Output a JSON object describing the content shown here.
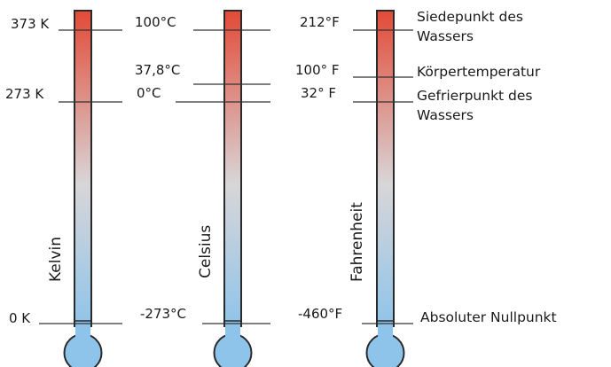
{
  "colors": {
    "hot": "#e34a37",
    "mid": "#d8d6d8",
    "cold": "#8fc4ea"
  },
  "scales": [
    {
      "name": "Kelvin",
      "labels": [
        "373 K",
        "273 K",
        "0 K"
      ]
    },
    {
      "name": "Celsius",
      "labels": [
        "100°C",
        "37,8°C",
        "0°C",
        "-273°C"
      ]
    },
    {
      "name": "Fahrenheit",
      "labels": [
        "212°F",
        "100° F",
        "32° F",
        "-460°F"
      ]
    }
  ],
  "notes": {
    "boiling": [
      "Siedepunkt des",
      "Wassers"
    ],
    "body": "Körpertemperatur",
    "freezing": [
      "Gefrierpunkt des",
      "Wassers"
    ],
    "absolute_zero": "Absoluter Nullpunkt"
  }
}
